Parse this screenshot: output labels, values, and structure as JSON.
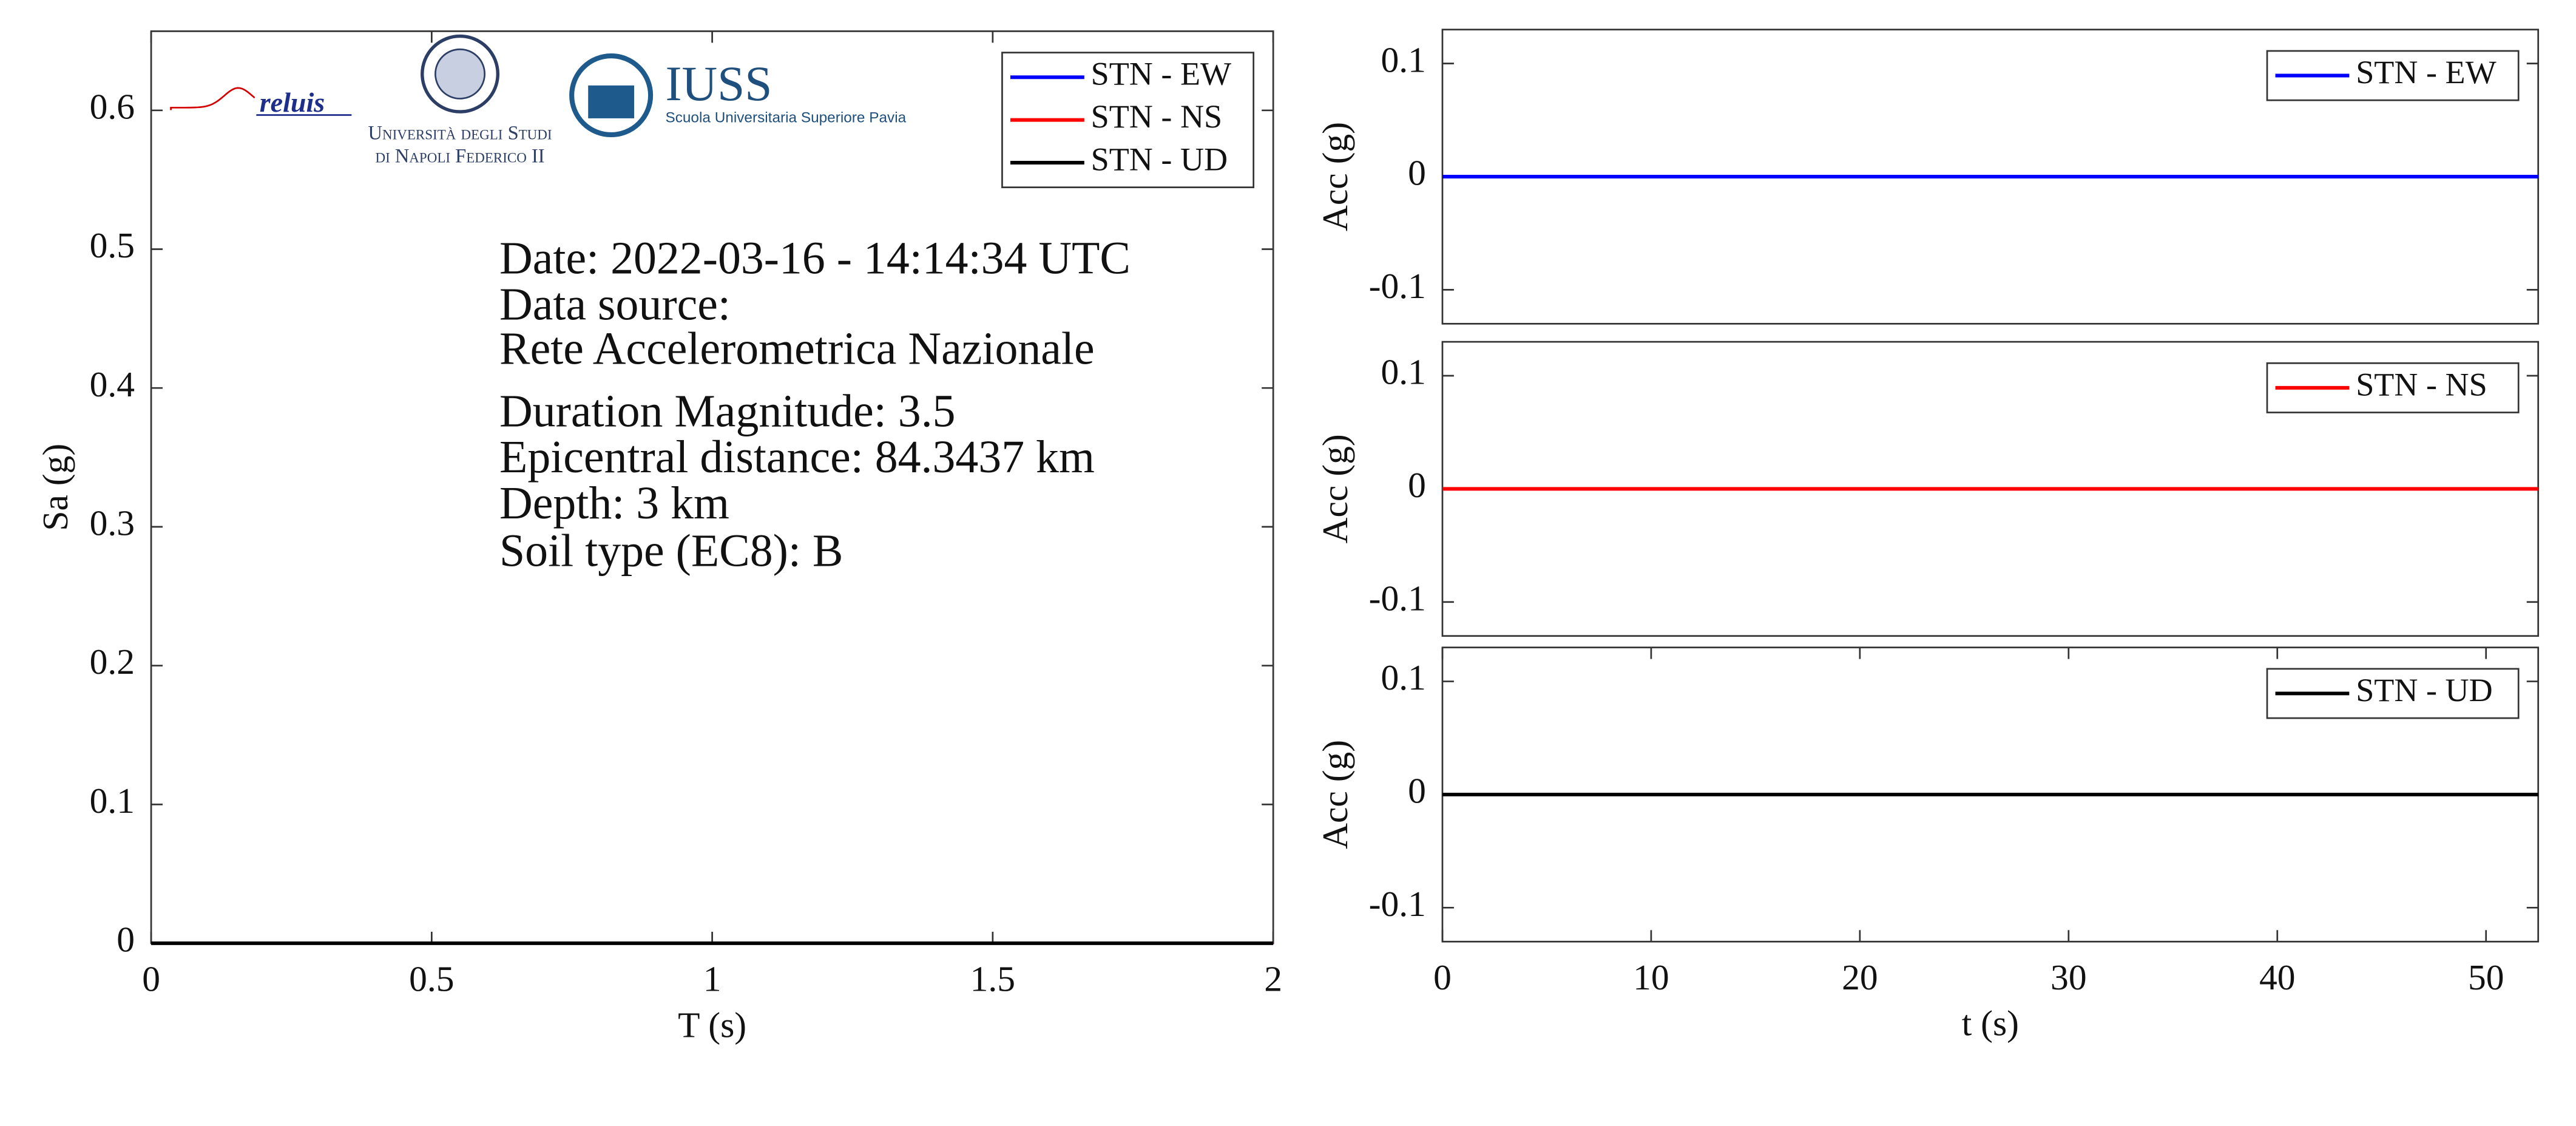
{
  "chart_data": [
    {
      "type": "line",
      "xlabel": "T (s)",
      "ylabel": "Sa (g)",
      "xlim": [
        0,
        2
      ],
      "xticks": [
        0,
        0.5,
        1,
        1.5,
        2
      ],
      "ylim": [
        0,
        0.657
      ],
      "yticks": [
        0,
        0.1,
        0.2,
        0.3,
        0.4,
        0.5,
        0.6
      ],
      "legend": "upper right",
      "series": [
        {
          "name": "STN - EW",
          "color": "#0000ff",
          "x": [
            0,
            2
          ],
          "values": [
            0,
            0
          ]
        },
        {
          "name": "STN - NS",
          "color": "#ff0000",
          "x": [
            0,
            2
          ],
          "values": [
            0,
            0
          ]
        },
        {
          "name": "STN - UD",
          "color": "#000000",
          "x": [
            0,
            2
          ],
          "values": [
            0,
            0
          ]
        }
      ],
      "annotations": [
        "Date: 2022-03-16 - 14:14:34 UTC",
        "Data source:",
        "Rete Accelerometrica Nazionale",
        "Duration Magnitude: 3.5",
        "Epicentral distance: 84.3437 km",
        "Depth: 3 km",
        "Soil type (EC8): B"
      ],
      "logos": [
        "reluis",
        "Università degli Studi",
        "di Napoli Federico II",
        "IUSS",
        "Scuola Universitaria Superiore Pavia"
      ]
    },
    {
      "type": "line",
      "ylabel": "Acc (g)",
      "xlim": [
        0,
        52.5
      ],
      "ylim": [
        -0.13,
        0.13
      ],
      "yticks": [
        -0.1,
        0,
        0.1
      ],
      "legend": "upper right",
      "series": [
        {
          "name": "STN - EW",
          "color": "#0000ff",
          "x": [
            0,
            52.5
          ],
          "values": [
            0,
            0
          ]
        }
      ]
    },
    {
      "type": "line",
      "ylabel": "Acc (g)",
      "xlim": [
        0,
        52.5
      ],
      "ylim": [
        -0.13,
        0.13
      ],
      "yticks": [
        -0.1,
        0,
        0.1
      ],
      "legend": "upper right",
      "series": [
        {
          "name": "STN - NS",
          "color": "#ff0000",
          "x": [
            0,
            52.5
          ],
          "values": [
            0,
            0
          ]
        }
      ]
    },
    {
      "type": "line",
      "xlabel": "t (s)",
      "ylabel": "Acc (g)",
      "xlim": [
        0,
        52.5
      ],
      "xticks": [
        0,
        10,
        20,
        30,
        40,
        50
      ],
      "ylim": [
        -0.13,
        0.13
      ],
      "yticks": [
        -0.1,
        0,
        0.1
      ],
      "legend": "upper right",
      "series": [
        {
          "name": "STN - UD",
          "color": "#000000",
          "x": [
            0,
            52.5
          ],
          "values": [
            0,
            0
          ]
        }
      ]
    }
  ]
}
